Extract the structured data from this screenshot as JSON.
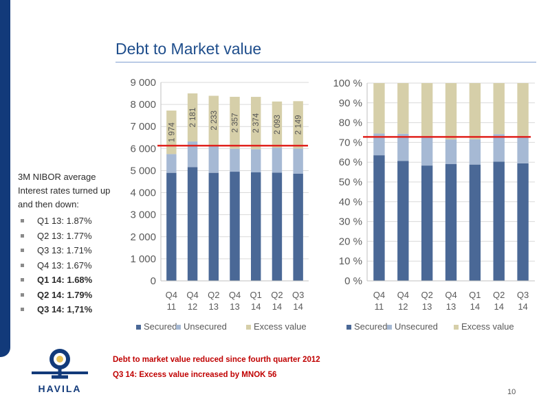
{
  "title": "Debt to Market value",
  "sidebar": {
    "heading": "3M NIBOR average",
    "subheading": "Interest rates turned up and then down:",
    "items": [
      {
        "label": "Q1 13: 1.87%",
        "bold": false
      },
      {
        "label": "Q2 13: 1.77%",
        "bold": false
      },
      {
        "label": "Q3 13: 1.71%",
        "bold": false
      },
      {
        "label": "Q4 13: 1.67%",
        "bold": false
      },
      {
        "label": "Q1 14: 1.68%",
        "bold": true
      },
      {
        "label": "Q2 14: 1.79%",
        "bold": true
      },
      {
        "label": "Q3 14: 1,71%",
        "bold": true
      }
    ]
  },
  "notes": [
    "Debt to market value reduced since fourth quarter 2012",
    "Q3 14: Excess value increased by MNOK 56"
  ],
  "logo": {
    "text": "HAVILA"
  },
  "page_number": "10",
  "colors": {
    "secured": "#4a6896",
    "unsecured": "#a6b9d4",
    "excess": "#d6cfa9",
    "reference_line": "#e0201b",
    "title": "#1f4e8c",
    "notes": "#c00000",
    "brand": "#123a7a"
  },
  "chart_data": [
    {
      "type": "bar",
      "stacked": true,
      "categories": [
        [
          "Q4",
          "11"
        ],
        [
          "Q4",
          "12"
        ],
        [
          "Q2",
          "13"
        ],
        [
          "Q4",
          "13"
        ],
        [
          "Q1",
          "14"
        ],
        [
          "Q2",
          "14"
        ],
        [
          "Q3",
          "14"
        ]
      ],
      "series": [
        {
          "name": "Secured",
          "values": [
            4900,
            5160,
            4900,
            4950,
            4920,
            4910,
            4860
          ]
        },
        {
          "name": "Unsecured",
          "values": [
            850,
            1160,
            1260,
            1040,
            1050,
            1130,
            1140
          ]
        },
        {
          "name": "Excess value",
          "values": [
            1974,
            2181,
            2233,
            2357,
            2374,
            2093,
            2149
          ]
        }
      ],
      "data_labels": [
        "1 974",
        "2 181",
        "2 233",
        "2 357",
        "2 374",
        "2 093",
        "2 149"
      ],
      "reference_line": 6130,
      "yticks": [
        "0",
        "1 000",
        "2 000",
        "3 000",
        "4 000",
        "5 000",
        "6 000",
        "7 000",
        "8 000",
        "9 000"
      ],
      "ylim": [
        0,
        9000
      ],
      "grid": true,
      "legend_position": "bottom"
    },
    {
      "type": "bar",
      "stacked": true,
      "percent": true,
      "categories": [
        [
          "Q4",
          "11"
        ],
        [
          "Q4",
          "12"
        ],
        [
          "Q2",
          "13"
        ],
        [
          "Q4",
          "13"
        ],
        [
          "Q1",
          "14"
        ],
        [
          "Q2",
          "14"
        ],
        [
          "Q3",
          "14"
        ]
      ],
      "series": [
        {
          "name": "Secured",
          "values": [
            63.5,
            60.6,
            58.3,
            59.1,
            58.8,
            60.3,
            59.4
          ]
        },
        {
          "name": "Unsecured",
          "values": [
            11.0,
            13.8,
            15.0,
            12.4,
            12.8,
            13.9,
            13.9
          ]
        },
        {
          "name": "Excess value",
          "values": [
            25.5,
            25.6,
            26.7,
            28.5,
            28.4,
            25.8,
            26.7
          ]
        }
      ],
      "reference_line": 72.8,
      "yticks": [
        "0 %",
        "10 %",
        "20 %",
        "30 %",
        "40 %",
        "50 %",
        "60 %",
        "70 %",
        "80 %",
        "90 %",
        "100 %"
      ],
      "ylim": [
        0,
        100
      ],
      "grid": true,
      "legend_position": "bottom"
    }
  ]
}
